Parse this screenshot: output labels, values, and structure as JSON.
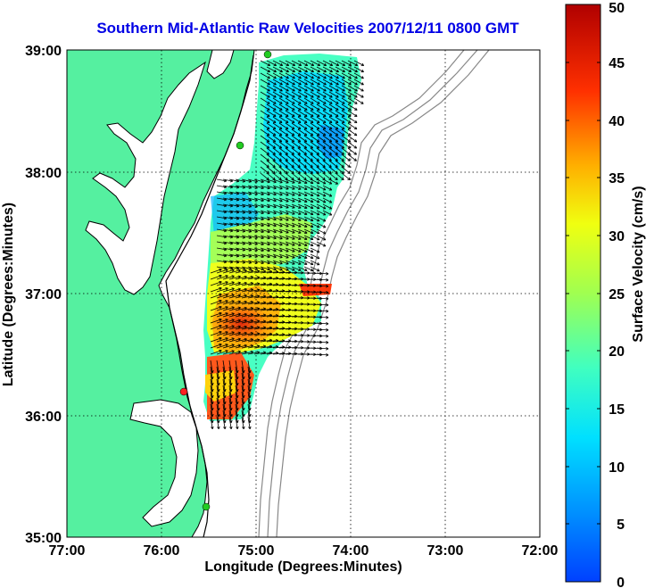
{
  "title": "Southern Mid-Atlantic Raw Velocities 2007/12/11 0800 GMT",
  "axes": {
    "xlabel": "Longitude (Degrees:Minutes)",
    "ylabel": "Latitude (Degrees:Minutes)",
    "x_ticks": [
      "77:00",
      "76:00",
      "75:00",
      "74:00",
      "73:00",
      "72:00"
    ],
    "y_ticks": [
      "39:00",
      "38:00",
      "37:00",
      "36:00",
      "35:00"
    ],
    "xlim": [
      -77,
      -72
    ],
    "ylim": [
      35,
      39
    ],
    "grid": "dotted"
  },
  "colorbar": {
    "label": "Surface Velocity (cm/s)",
    "ticks": [
      "0",
      "5",
      "10",
      "15",
      "20",
      "25",
      "30",
      "35",
      "40",
      "45",
      "50"
    ],
    "range": [
      0,
      50
    ],
    "colormap": "jet"
  },
  "colors": {
    "land": "#55f0a0",
    "title": "#0000e6",
    "coast": "#000000",
    "bathymetry": "#888888",
    "station_green": "#22cc22",
    "station_red": "#ff2020"
  },
  "stations": [
    {
      "lon": -74.87,
      "lat": 39.0,
      "status": "green"
    },
    {
      "lon": -75.13,
      "lat": 38.22,
      "status": "green"
    },
    {
      "lon": -75.72,
      "lat": 36.18,
      "status": "red"
    },
    {
      "lon": -75.47,
      "lat": 35.25,
      "status": "green"
    }
  ]
}
